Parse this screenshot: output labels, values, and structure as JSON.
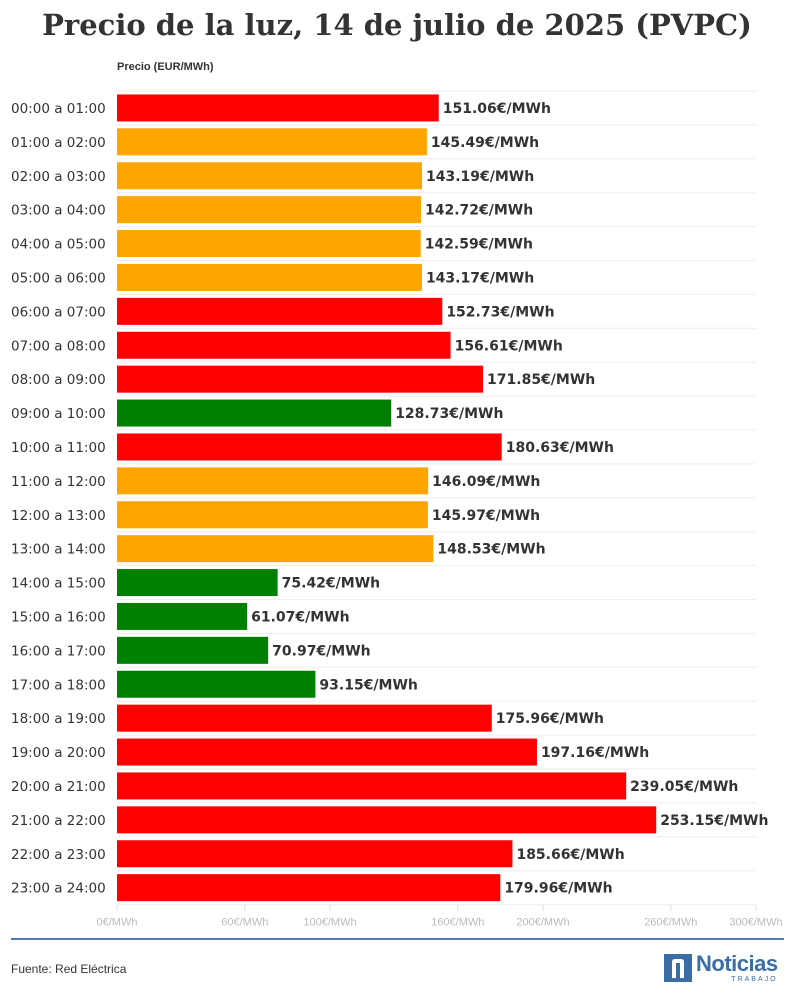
{
  "chart_data": {
    "type": "bar",
    "orientation": "horizontal",
    "title": "Precio de la luz, 14 de julio de 2025 (PVPC)",
    "ylabel": "Precio (EUR/MWh)",
    "xlabel": "",
    "xlim": [
      0,
      300
    ],
    "grid": true,
    "categories": [
      "00:00 a 01:00",
      "01:00 a 02:00",
      "02:00 a 03:00",
      "03:00 a 04:00",
      "04:00 a 05:00",
      "05:00 a 06:00",
      "06:00 a 07:00",
      "07:00 a 08:00",
      "08:00 a 09:00",
      "09:00 a 10:00",
      "10:00 a 11:00",
      "11:00 a 12:00",
      "12:00 a 13:00",
      "13:00 a 14:00",
      "14:00 a 15:00",
      "15:00 a 16:00",
      "16:00 a 17:00",
      "17:00 a 18:00",
      "18:00 a 19:00",
      "19:00 a 20:00",
      "20:00 a 21:00",
      "21:00 a 22:00",
      "22:00 a 23:00",
      "23:00 a 24:00"
    ],
    "values": [
      151.06,
      145.49,
      143.19,
      142.72,
      142.59,
      143.17,
      152.73,
      156.61,
      171.85,
      128.73,
      180.63,
      146.09,
      145.97,
      148.53,
      75.42,
      61.07,
      70.97,
      93.15,
      175.96,
      197.16,
      239.05,
      253.15,
      185.66,
      179.96
    ],
    "value_labels": [
      "151.06€/MWh",
      "145.49€/MWh",
      "143.19€/MWh",
      "142.72€/MWh",
      "142.59€/MWh",
      "143.17€/MWh",
      "152.73€/MWh",
      "156.61€/MWh",
      "171.85€/MWh",
      "128.73€/MWh",
      "180.63€/MWh",
      "146.09€/MWh",
      "145.97€/MWh",
      "148.53€/MWh",
      "75.42€/MWh",
      "61.07€/MWh",
      "70.97€/MWh",
      "93.15€/MWh",
      "175.96€/MWh",
      "197.16€/MWh",
      "239.05€/MWh",
      "253.15€/MWh",
      "185.66€/MWh",
      "179.96€/MWh"
    ],
    "bar_colors": [
      "#ff0000",
      "#ffa500",
      "#ffa500",
      "#ffa500",
      "#ffa500",
      "#ffa500",
      "#ff0000",
      "#ff0000",
      "#ff0000",
      "#008000",
      "#ff0000",
      "#ffa500",
      "#ffa500",
      "#ffa500",
      "#008000",
      "#008000",
      "#008000",
      "#008000",
      "#ff0000",
      "#ff0000",
      "#ff0000",
      "#ff0000",
      "#ff0000",
      "#ff0000"
    ],
    "x_ticks": [
      {
        "value": 0,
        "label": "0€/MWh"
      },
      {
        "value": 60,
        "label": "60€/MWh"
      },
      {
        "value": 100,
        "label": "100€/MWh"
      },
      {
        "value": 160,
        "label": "160€/MWh"
      },
      {
        "value": 200,
        "label": "200€/MWh"
      },
      {
        "value": 260,
        "label": "260€/MWh"
      },
      {
        "value": 300,
        "label": "300€/MWh"
      }
    ]
  },
  "footer": {
    "source": "Fuente: Red Eléctrica",
    "logo_word": "Noticias",
    "logo_sub": "TRABAJO"
  },
  "colors": {
    "high": "#ff0000",
    "medium": "#ffa500",
    "low": "#008000",
    "brand": "#3a6ea5"
  }
}
